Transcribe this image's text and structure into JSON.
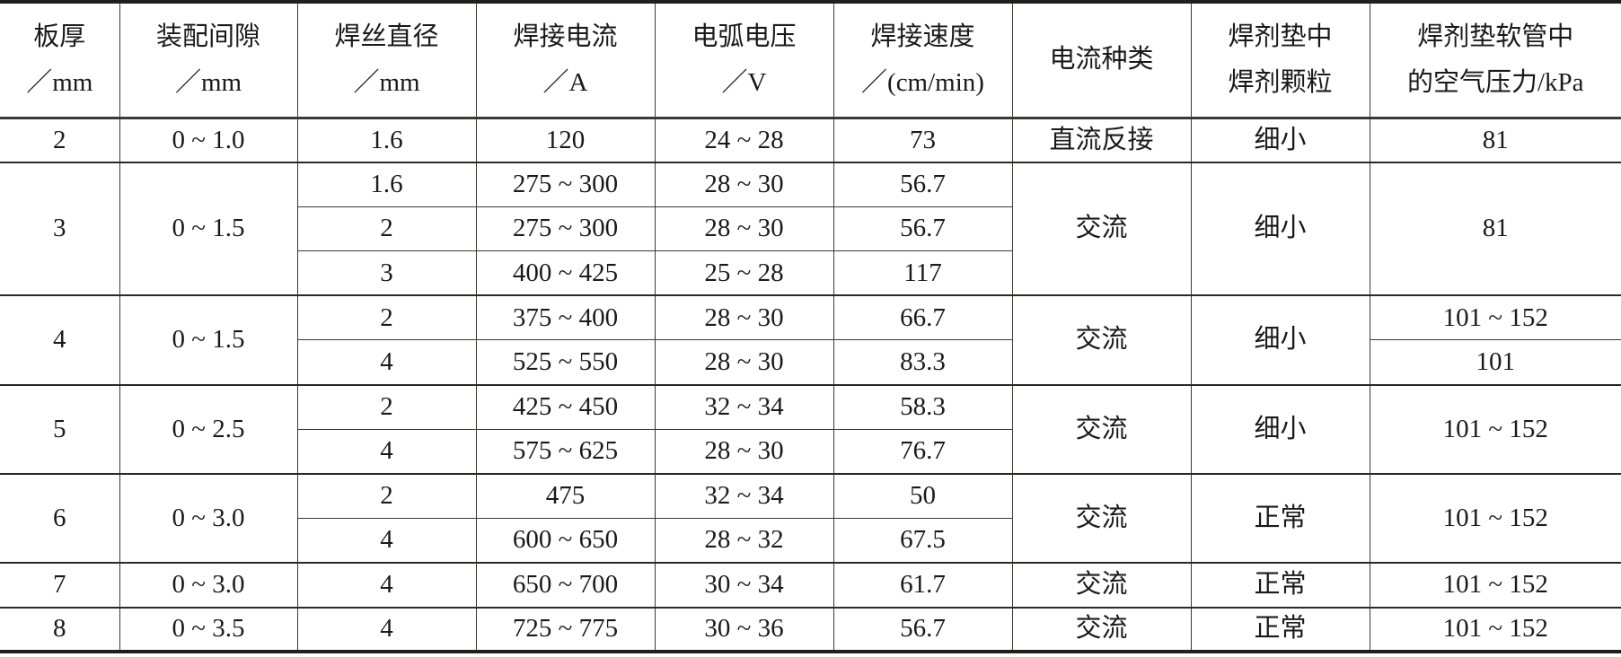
{
  "table": {
    "headers": [
      [
        "板厚",
        "／mm"
      ],
      [
        "装配间隙",
        "／mm"
      ],
      [
        "焊丝直径",
        "／mm"
      ],
      [
        "焊接电流",
        "／A"
      ],
      [
        "电弧电压",
        "／V"
      ],
      [
        "焊接速度",
        "／(cm/min)"
      ],
      [
        "电流种类"
      ],
      [
        "焊剂垫中",
        "焊剂颗粒"
      ],
      [
        "焊剂垫软管中",
        "的空气压力/kPa"
      ]
    ],
    "rows": [
      {
        "group": true,
        "cells": [
          {
            "t": "2"
          },
          {
            "t": "0 ~ 1.0"
          },
          {
            "t": "1.6"
          },
          {
            "t": "120"
          },
          {
            "t": "24 ~ 28"
          },
          {
            "t": "73"
          },
          {
            "t": "直流反接"
          },
          {
            "t": "细小"
          },
          {
            "t": "81"
          }
        ]
      },
      {
        "group": true,
        "cells": [
          {
            "t": "3",
            "rs": 3
          },
          {
            "t": "0 ~ 1.5",
            "rs": 3
          },
          {
            "t": "1.6"
          },
          {
            "t": "275 ~ 300"
          },
          {
            "t": "28 ~ 30"
          },
          {
            "t": "56.7"
          },
          {
            "t": "交流",
            "rs": 3
          },
          {
            "t": "细小",
            "rs": 3
          },
          {
            "t": "81",
            "rs": 3
          }
        ]
      },
      {
        "cells": [
          {
            "t": "2"
          },
          {
            "t": "275 ~ 300"
          },
          {
            "t": "28 ~ 30"
          },
          {
            "t": "56.7"
          }
        ]
      },
      {
        "cells": [
          {
            "t": "3"
          },
          {
            "t": "400 ~ 425"
          },
          {
            "t": "25 ~ 28"
          },
          {
            "t": "117"
          }
        ]
      },
      {
        "group": true,
        "cells": [
          {
            "t": "4",
            "rs": 2
          },
          {
            "t": "0 ~ 1.5",
            "rs": 2
          },
          {
            "t": "2"
          },
          {
            "t": "375 ~ 400"
          },
          {
            "t": "28 ~ 30"
          },
          {
            "t": "66.7"
          },
          {
            "t": "交流",
            "rs": 2
          },
          {
            "t": "细小",
            "rs": 2
          },
          {
            "t": "101 ~ 152"
          }
        ]
      },
      {
        "cells": [
          {
            "t": "4"
          },
          {
            "t": "525 ~ 550"
          },
          {
            "t": "28 ~ 30"
          },
          {
            "t": "83.3"
          },
          {
            "t": "101"
          }
        ]
      },
      {
        "group": true,
        "cells": [
          {
            "t": "5",
            "rs": 2
          },
          {
            "t": "0 ~ 2.5",
            "rs": 2
          },
          {
            "t": "2"
          },
          {
            "t": "425 ~ 450"
          },
          {
            "t": "32 ~ 34"
          },
          {
            "t": "58.3"
          },
          {
            "t": "交流",
            "rs": 2
          },
          {
            "t": "细小",
            "rs": 2
          },
          {
            "t": "101 ~ 152",
            "rs": 2
          }
        ]
      },
      {
        "cells": [
          {
            "t": "4"
          },
          {
            "t": "575 ~ 625"
          },
          {
            "t": "28 ~ 30"
          },
          {
            "t": "76.7"
          }
        ]
      },
      {
        "group": true,
        "cells": [
          {
            "t": "6",
            "rs": 2
          },
          {
            "t": "0 ~ 3.0",
            "rs": 2
          },
          {
            "t": "2"
          },
          {
            "t": "475"
          },
          {
            "t": "32 ~ 34"
          },
          {
            "t": "50"
          },
          {
            "t": "交流",
            "rs": 2
          },
          {
            "t": "正常",
            "rs": 2
          },
          {
            "t": "101 ~ 152",
            "rs": 2
          }
        ]
      },
      {
        "cells": [
          {
            "t": "4"
          },
          {
            "t": "600 ~ 650"
          },
          {
            "t": "28 ~ 32"
          },
          {
            "t": "67.5"
          }
        ]
      },
      {
        "group": true,
        "cells": [
          {
            "t": "7"
          },
          {
            "t": "0 ~ 3.0"
          },
          {
            "t": "4"
          },
          {
            "t": "650 ~ 700"
          },
          {
            "t": "30 ~ 34"
          },
          {
            "t": "61.7"
          },
          {
            "t": "交流"
          },
          {
            "t": "正常"
          },
          {
            "t": "101 ~ 152"
          }
        ]
      },
      {
        "group": true,
        "cells": [
          {
            "t": "8"
          },
          {
            "t": "0 ~ 3.5"
          },
          {
            "t": "4"
          },
          {
            "t": "725 ~ 775"
          },
          {
            "t": "30 ~ 36"
          },
          {
            "t": "56.7"
          },
          {
            "t": "交流"
          },
          {
            "t": "正常"
          },
          {
            "t": "101 ~ 152"
          }
        ]
      }
    ]
  }
}
